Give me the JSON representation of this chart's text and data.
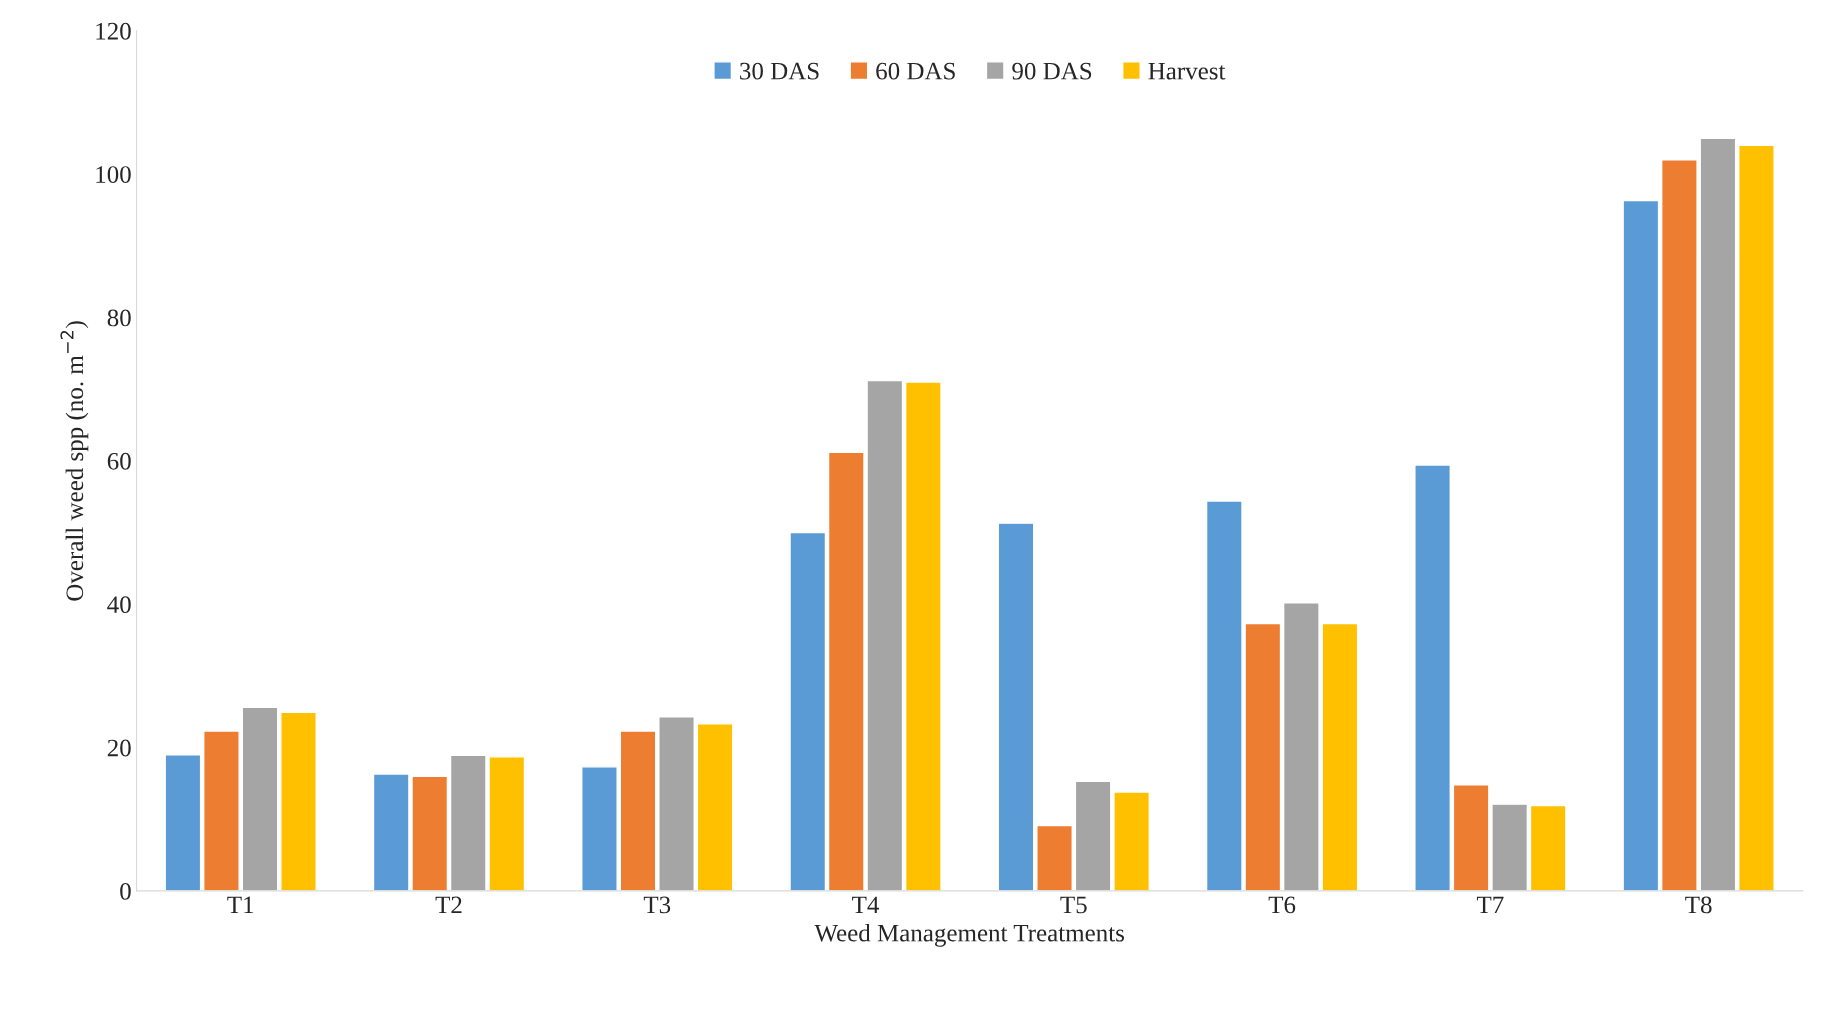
{
  "chart_data": {
    "type": "bar",
    "xlabel": "Weed Management Treatments",
    "ylabel": "Overall weed spp (no. m$^{−2}$)",
    "categories": [
      "T1",
      "T2",
      "T3",
      "T4",
      "T5",
      "T6",
      "T7",
      "T8"
    ],
    "series": [
      {
        "name": "30 DAS",
        "color": "#5b9bd5",
        "values": [
          19,
          16.3,
          17.3,
          50,
          51.3,
          54.4,
          59.4,
          96.3
        ]
      },
      {
        "name": "60 DAS",
        "color": "#ed7d31",
        "values": [
          22.3,
          16,
          22.3,
          61.2,
          9.1,
          37.3,
          14.8,
          102
        ]
      },
      {
        "name": "90 DAS",
        "color": "#a5a5a5",
        "values": [
          25.6,
          18.9,
          24.3,
          71.2,
          15.3,
          40.2,
          12.1,
          105
        ]
      },
      {
        "name": "Harvest",
        "color": "#ffc000",
        "values": [
          24.9,
          18.7,
          23.3,
          71,
          13.8,
          37.3,
          11.9,
          104
        ]
      }
    ],
    "ylim": [
      0,
      120
    ],
    "yticks": [
      0,
      20,
      40,
      60,
      80,
      100,
      120
    ],
    "grid": false,
    "legend": "top"
  }
}
